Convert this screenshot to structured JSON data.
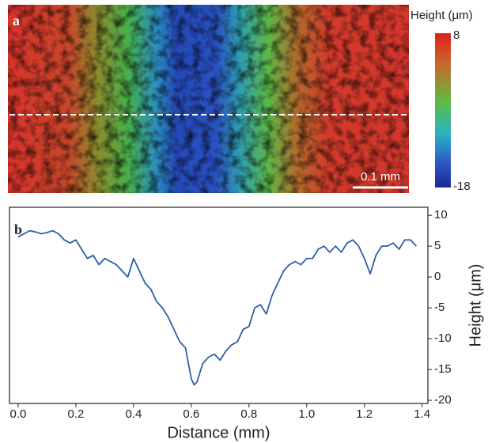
{
  "heatmap": {
    "label": "a",
    "colorbar_title": "Height (μm)",
    "colorbar_max": 8,
    "colorbar_min": -18,
    "scale_bar": "0.1 mm"
  },
  "chart_data": {
    "type": "line",
    "label": "b",
    "xlabel": "Distance (mm)",
    "ylabel": "Height (μm)",
    "color": "#2e5ea8",
    "xlim": [
      -0.03,
      1.42
    ],
    "ylim": [
      -20.5,
      11.3
    ],
    "xticks": [
      {
        "value": 0,
        "label": "0.0"
      },
      {
        "value": 0.2,
        "label": "0.2"
      },
      {
        "value": 0.4,
        "label": "0.4"
      },
      {
        "value": 0.6,
        "label": "0.6"
      },
      {
        "value": 0.8,
        "label": "0.8"
      },
      {
        "value": 1,
        "label": "1.0"
      },
      {
        "value": 1.2,
        "label": "1.2"
      },
      {
        "value": 1.4,
        "label": "1.4"
      }
    ],
    "yticks": [
      -20,
      -15,
      -10,
      -5,
      0,
      5,
      10
    ],
    "x": [
      0,
      0.02,
      0.04,
      0.06,
      0.08,
      0.1,
      0.12,
      0.14,
      0.16,
      0.18,
      0.2,
      0.22,
      0.24,
      0.26,
      0.28,
      0.3,
      0.32,
      0.34,
      0.36,
      0.38,
      0.4,
      0.42,
      0.44,
      0.46,
      0.48,
      0.5,
      0.52,
      0.54,
      0.56,
      0.58,
      0.6,
      0.61,
      0.62,
      0.64,
      0.66,
      0.68,
      0.7,
      0.72,
      0.74,
      0.76,
      0.78,
      0.8,
      0.82,
      0.84,
      0.86,
      0.88,
      0.9,
      0.92,
      0.94,
      0.96,
      0.98,
      1,
      1.02,
      1.04,
      1.06,
      1.08,
      1.1,
      1.12,
      1.14,
      1.16,
      1.18,
      1.2,
      1.22,
      1.24,
      1.26,
      1.28,
      1.3,
      1.32,
      1.34,
      1.36,
      1.38
    ],
    "values": [
      6.5,
      7,
      7.5,
      7.3,
      7,
      7.2,
      7.5,
      7,
      6,
      5.5,
      6,
      4.5,
      3,
      3.5,
      2,
      3,
      2.5,
      2,
      1,
      0,
      3,
      1,
      -1,
      -2,
      -4,
      -5,
      -6.5,
      -8.5,
      -10.5,
      -11.5,
      -16.5,
      -17.5,
      -17,
      -14,
      -13,
      -12.5,
      -13.5,
      -12,
      -11,
      -10.5,
      -8.5,
      -8,
      -5,
      -4.5,
      -6,
      -3,
      -1,
      1,
      2,
      2.5,
      2,
      3,
      3,
      4.5,
      5,
      4,
      5,
      4,
      5.5,
      6,
      5,
      3,
      0.5,
      3.5,
      5,
      5,
      5.5,
      4.5,
      6,
      6,
      5
    ]
  }
}
